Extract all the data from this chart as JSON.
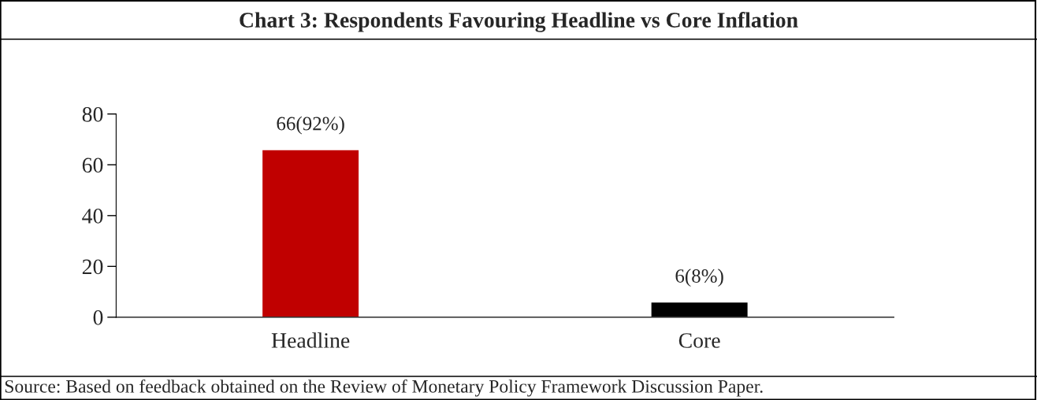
{
  "chart_data": {
    "type": "bar",
    "title": "Chart 3: Respondents Favouring Headline vs Core Inflation",
    "categories": [
      "Headline",
      "Core"
    ],
    "values": [
      66,
      6
    ],
    "colors": [
      "#c00000",
      "#000000"
    ],
    "value_labels": [
      "66(92%)",
      "6(8%)"
    ],
    "ylim": [
      0,
      80
    ],
    "yticks": [
      0,
      20,
      40,
      60,
      80
    ],
    "grid": false,
    "legend": false,
    "annotations": [
      "Source: Based on feedback obtained on the Review of Monetary Policy Framework Discussion Paper."
    ]
  }
}
